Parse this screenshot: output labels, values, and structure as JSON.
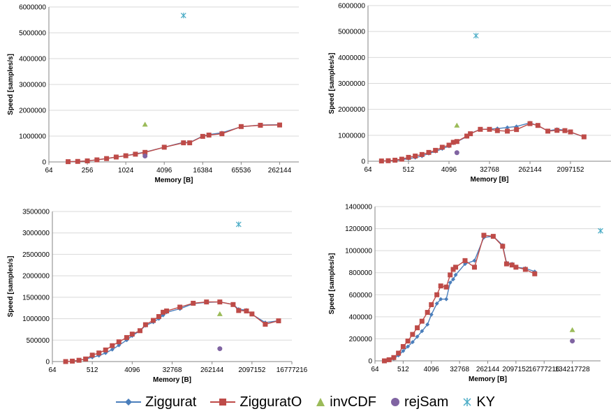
{
  "chart_data": [
    {
      "type": "line",
      "xlabel": "Memory [B]",
      "ylabel": "Speed [samples/s]",
      "x_scale": "log2",
      "xlim": [
        64,
        524288
      ],
      "ylim": [
        0,
        6000000
      ],
      "x_ticks": [
        "64",
        "256",
        "1024",
        "4096",
        "16384",
        "65536",
        "262144"
      ],
      "y_ticks": [
        "0",
        "1000000",
        "2000000",
        "3000000",
        "4000000",
        "5000000",
        "6000000"
      ],
      "grid": "horizontal",
      "series": [
        {
          "name": "Ziggurat",
          "x": [
            128,
            181,
            256,
            362,
            512,
            724,
            1024,
            1448,
            2048,
            4096,
            8192,
            10240,
            16384,
            20480,
            32768,
            65536,
            131072,
            262144
          ],
          "y": [
            10000,
            20000,
            40000,
            80000,
            130000,
            190000,
            240000,
            310000,
            380000,
            570000,
            760000,
            750000,
            1000000,
            1060000,
            1130000,
            1360000,
            1430000,
            1440000
          ]
        },
        {
          "name": "ZigguratO",
          "x": [
            128,
            181,
            256,
            362,
            512,
            724,
            1024,
            1448,
            2048,
            4096,
            8192,
            10240,
            16384,
            20480,
            32768,
            65536,
            131072,
            262144
          ],
          "y": [
            10000,
            20000,
            40000,
            80000,
            130000,
            190000,
            240000,
            300000,
            370000,
            570000,
            740000,
            740000,
            990000,
            1040000,
            1090000,
            1370000,
            1420000,
            1430000
          ]
        },
        {
          "name": "invCDF",
          "x": [
            2048
          ],
          "y": [
            1450000
          ]
        },
        {
          "name": "rejSam",
          "x": [
            2048
          ],
          "y": [
            230000
          ]
        },
        {
          "name": "KY",
          "x": [
            8192
          ],
          "y": [
            5670000
          ]
        }
      ]
    },
    {
      "type": "line",
      "xlabel": "Memory [B]",
      "ylabel": "Speed [samples/s]",
      "x_scale": "log2",
      "xlim": [
        64,
        16777216
      ],
      "ylim": [
        0,
        6000000
      ],
      "x_ticks": [
        "64",
        "512",
        "4096",
        "32768",
        "262144",
        "2097152"
      ],
      "y_ticks": [
        "0",
        "1000000",
        "2000000",
        "3000000",
        "4000000",
        "5000000",
        "6000000"
      ],
      "grid": "horizontal",
      "series": [
        {
          "name": "Ziggurat",
          "x": [
            128,
            181,
            256,
            362,
            512,
            724,
            1024,
            1448,
            2048,
            2896,
            4096,
            5120,
            6144,
            10240,
            12288,
            20480,
            32768,
            49152,
            81920,
            131072,
            262144,
            393216,
            655360,
            1048576,
            1572864,
            2097152,
            4194304
          ],
          "y": [
            10000,
            15000,
            30000,
            60000,
            100000,
            140000,
            200000,
            300000,
            380000,
            480000,
            580000,
            700000,
            750000,
            950000,
            1070000,
            1230000,
            1240000,
            1260000,
            1300000,
            1340000,
            1480000,
            1370000,
            1170000,
            1230000,
            1200000,
            1120000,
            940000
          ]
        },
        {
          "name": "ZigguratO",
          "x": [
            128,
            181,
            256,
            362,
            512,
            724,
            1024,
            1448,
            2048,
            2896,
            4096,
            5120,
            6144,
            10240,
            12288,
            20480,
            32768,
            49152,
            81920,
            131072,
            262144,
            393216,
            655360,
            1048576,
            1572864,
            2097152,
            4194304
          ],
          "y": [
            10000,
            20000,
            40000,
            80000,
            150000,
            200000,
            260000,
            340000,
            420000,
            540000,
            620000,
            730000,
            760000,
            970000,
            1060000,
            1230000,
            1230000,
            1180000,
            1160000,
            1220000,
            1450000,
            1380000,
            1160000,
            1190000,
            1180000,
            1130000,
            940000
          ]
        },
        {
          "name": "invCDF",
          "x": [
            6144
          ],
          "y": [
            1380000
          ]
        },
        {
          "name": "rejSam",
          "x": [
            6144
          ],
          "y": [
            330000
          ]
        },
        {
          "name": "KY",
          "x": [
            16384
          ],
          "y": [
            4840000
          ]
        }
      ]
    },
    {
      "type": "line",
      "xlabel": "Memory [B]",
      "ylabel": "Speed [samples/s]",
      "x_scale": "log2",
      "xlim": [
        64,
        16777216
      ],
      "ylim": [
        0,
        3500000
      ],
      "x_ticks": [
        "64",
        "512",
        "4096",
        "32768",
        "262144",
        "2097152",
        "16777216"
      ],
      "y_ticks": [
        "0",
        "500000",
        "1000000",
        "1500000",
        "2000000",
        "2500000",
        "3000000",
        "3500000"
      ],
      "grid": "horizontal",
      "series": [
        {
          "name": "Ziggurat",
          "x": [
            128,
            181,
            256,
            362,
            512,
            724,
            1024,
            1448,
            2048,
            3072,
            4096,
            6144,
            8192,
            12288,
            16384,
            20480,
            24576,
            49152,
            98304,
            196608,
            393216,
            786432,
            1048576,
            1572864,
            2097152,
            4194304,
            8388608
          ],
          "y": [
            0,
            10000,
            30000,
            60000,
            100000,
            140000,
            200000,
            280000,
            380000,
            500000,
            600000,
            720000,
            840000,
            920000,
            1000000,
            1080000,
            1150000,
            1230000,
            1350000,
            1380000,
            1390000,
            1330000,
            1220000,
            1200000,
            1100000,
            910000,
            950000
          ]
        },
        {
          "name": "ZigguratO",
          "x": [
            128,
            181,
            256,
            362,
            512,
            724,
            1024,
            1448,
            2048,
            3072,
            4096,
            6144,
            8192,
            12288,
            16384,
            20480,
            24576,
            49152,
            98304,
            196608,
            393216,
            786432,
            1048576,
            1572864,
            2097152,
            4194304,
            8388608
          ],
          "y": [
            0,
            10000,
            30000,
            60000,
            150000,
            200000,
            270000,
            370000,
            460000,
            560000,
            640000,
            720000,
            860000,
            960000,
            1050000,
            1150000,
            1180000,
            1270000,
            1360000,
            1390000,
            1390000,
            1330000,
            1190000,
            1180000,
            1110000,
            870000,
            950000
          ]
        },
        {
          "name": "invCDF",
          "x": [
            393216
          ],
          "y": [
            1110000
          ]
        },
        {
          "name": "rejSam",
          "x": [
            393216
          ],
          "y": [
            300000
          ]
        },
        {
          "name": "KY",
          "x": [
            1048576
          ],
          "y": [
            3200000
          ]
        }
      ]
    },
    {
      "type": "line",
      "xlabel": "Memory [B]",
      "ylabel": "Speed [samples/s]",
      "x_scale": "log2",
      "xlim": [
        64,
        1073741824
      ],
      "ylim": [
        0,
        1400000
      ],
      "x_ticks": [
        "64",
        "512",
        "4096",
        "32768",
        "262144",
        "2097152",
        "16777216",
        "134217728"
      ],
      "y_ticks": [
        "0",
        "200000",
        "400000",
        "600000",
        "800000",
        "1000000",
        "1200000",
        "1400000"
      ],
      "grid": "horizontal",
      "series": [
        {
          "name": "Ziggurat",
          "x": [
            128,
            181,
            256,
            362,
            512,
            724,
            1024,
            1448,
            2048,
            3072,
            4096,
            6144,
            8192,
            12288,
            16384,
            20480,
            24576,
            49152,
            98304,
            196608,
            393216,
            786432,
            1048576,
            1572864,
            2097152,
            4194304,
            8388608
          ],
          "y": [
            0,
            10000,
            20000,
            50000,
            90000,
            130000,
            170000,
            220000,
            270000,
            330000,
            420000,
            520000,
            560000,
            560000,
            710000,
            740000,
            780000,
            880000,
            910000,
            1120000,
            1130000,
            1050000,
            890000,
            880000,
            850000,
            840000,
            810000
          ]
        },
        {
          "name": "ZigguratO",
          "x": [
            128,
            181,
            256,
            362,
            512,
            724,
            1024,
            1448,
            2048,
            3072,
            4096,
            6144,
            8192,
            12288,
            16384,
            20480,
            24576,
            49152,
            98304,
            196608,
            393216,
            786432,
            1048576,
            1572864,
            2097152,
            4194304,
            8388608
          ],
          "y": [
            0,
            10000,
            30000,
            70000,
            130000,
            180000,
            240000,
            300000,
            360000,
            440000,
            510000,
            600000,
            680000,
            670000,
            780000,
            830000,
            850000,
            910000,
            850000,
            1140000,
            1130000,
            1040000,
            880000,
            870000,
            850000,
            830000,
            790000
          ]
        },
        {
          "name": "invCDF",
          "x": [
            134217728
          ],
          "y": [
            280000
          ]
        },
        {
          "name": "rejSam",
          "x": [
            134217728
          ],
          "y": [
            180000
          ]
        },
        {
          "name": "KY",
          "x": [
            1073741824
          ],
          "y": [
            1180000
          ]
        }
      ]
    }
  ],
  "legend": {
    "placement": "bottom-center",
    "items": [
      {
        "label": "Ziggurat",
        "color": "#4A7EBB",
        "marker": "diamond",
        "style": "line"
      },
      {
        "label": "ZigguratO",
        "color": "#BE4B48",
        "marker": "square",
        "style": "line"
      },
      {
        "label": "invCDF",
        "color": "#9BBB59",
        "marker": "triangle",
        "style": "point"
      },
      {
        "label": "rejSam",
        "color": "#8064A2",
        "marker": "circle",
        "style": "point"
      },
      {
        "label": "KY",
        "color": "#4BACC6",
        "marker": "star",
        "style": "point"
      }
    ]
  }
}
